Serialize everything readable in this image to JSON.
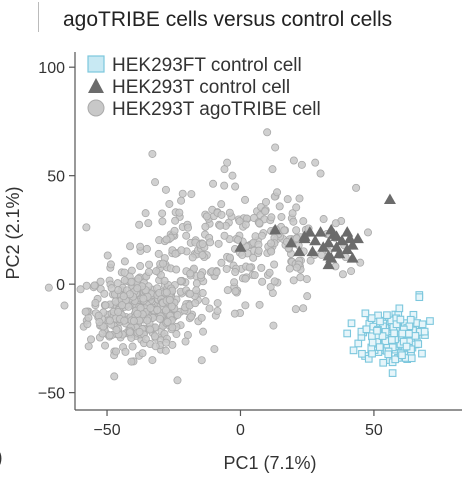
{
  "title_text": "agoTRIBE cells versus control cells",
  "edge_fragment": ")",
  "chart_data": {
    "type": "scatter",
    "title": "agoTRIBE cells versus control cells",
    "xlabel": "PC1 (7.1%)",
    "ylabel": "PC2 (2.1%)",
    "xlim": [
      -62,
      83
    ],
    "ylim": [
      -58,
      107
    ],
    "xticks": [
      -50,
      0,
      50
    ],
    "yticks": [
      -50,
      0,
      50,
      100
    ],
    "grid": false,
    "legend_position": "top-left",
    "colors": {
      "HEK293FT control cell": "#7cc7dd",
      "HEK293T control cell": "#6b6b6b",
      "HEK293T agoTRIBE cell": "#c8c8c8"
    },
    "series": [
      {
        "name": "HEK293T agoTRIBE cell",
        "marker": "circle",
        "clusters": [
          {
            "cx": -37,
            "cy": -12,
            "sx": 10,
            "sy": 9,
            "n": 380
          },
          {
            "cx": -15,
            "cy": 12,
            "sx": 15,
            "sy": 14,
            "n": 170
          },
          {
            "cx": 15,
            "cy": 18,
            "sx": 14,
            "sy": 13,
            "n": 130
          }
        ],
        "points": [
          [
            -33,
            60
          ],
          [
            -32,
            47
          ],
          [
            -6,
            53
          ],
          [
            -5,
            56
          ],
          [
            -3,
            50
          ],
          [
            -2,
            45
          ],
          [
            10,
            70
          ],
          [
            12,
            53
          ],
          [
            13,
            63
          ],
          [
            20,
            57
          ],
          [
            28,
            56
          ],
          [
            30,
            51
          ],
          [
            23,
            55
          ],
          [
            -38,
            -33
          ],
          [
            -33,
            -35
          ],
          [
            -44,
            -29
          ],
          [
            -24,
            -23
          ],
          [
            -50,
            -23
          ]
        ]
      },
      {
        "name": "HEK293T control cell",
        "marker": "triangle",
        "points": [
          [
            56,
            39
          ],
          [
            0,
            17
          ],
          [
            13,
            25
          ],
          [
            19,
            19
          ],
          [
            22,
            15
          ],
          [
            24,
            22
          ],
          [
            24,
            21
          ],
          [
            26,
            24
          ],
          [
            28,
            20
          ],
          [
            27,
            15
          ],
          [
            30,
            24
          ],
          [
            31,
            17
          ],
          [
            33,
            19
          ],
          [
            33,
            13
          ],
          [
            34,
            25
          ],
          [
            35,
            23
          ],
          [
            36,
            22
          ],
          [
            36,
            17
          ],
          [
            37,
            14
          ],
          [
            38,
            20
          ],
          [
            40,
            24
          ],
          [
            40,
            16
          ],
          [
            41,
            21
          ],
          [
            42,
            18
          ],
          [
            42,
            12
          ],
          [
            44,
            21
          ],
          [
            33,
            9
          ],
          [
            34,
            12
          ]
        ]
      },
      {
        "name": "HEK293FT control cell",
        "marker": "square",
        "clusters": [
          {
            "cx": 56,
            "cy": -24,
            "sx": 5.5,
            "sy": 5.5,
            "n": 150
          }
        ],
        "points": [
          [
            67,
            -5
          ],
          [
            67,
            -6
          ],
          [
            56,
            -35
          ],
          [
            59,
            -34
          ],
          [
            63,
            -32
          ],
          [
            57,
            -36
          ],
          [
            57,
            -41
          ],
          [
            49,
            -32
          ],
          [
            51,
            -20
          ],
          [
            58,
            -14
          ],
          [
            61,
            -20
          ],
          [
            69,
            -22
          ],
          [
            66,
            -25
          ],
          [
            68,
            -32
          ],
          [
            71,
            -17
          ]
        ]
      }
    ]
  }
}
